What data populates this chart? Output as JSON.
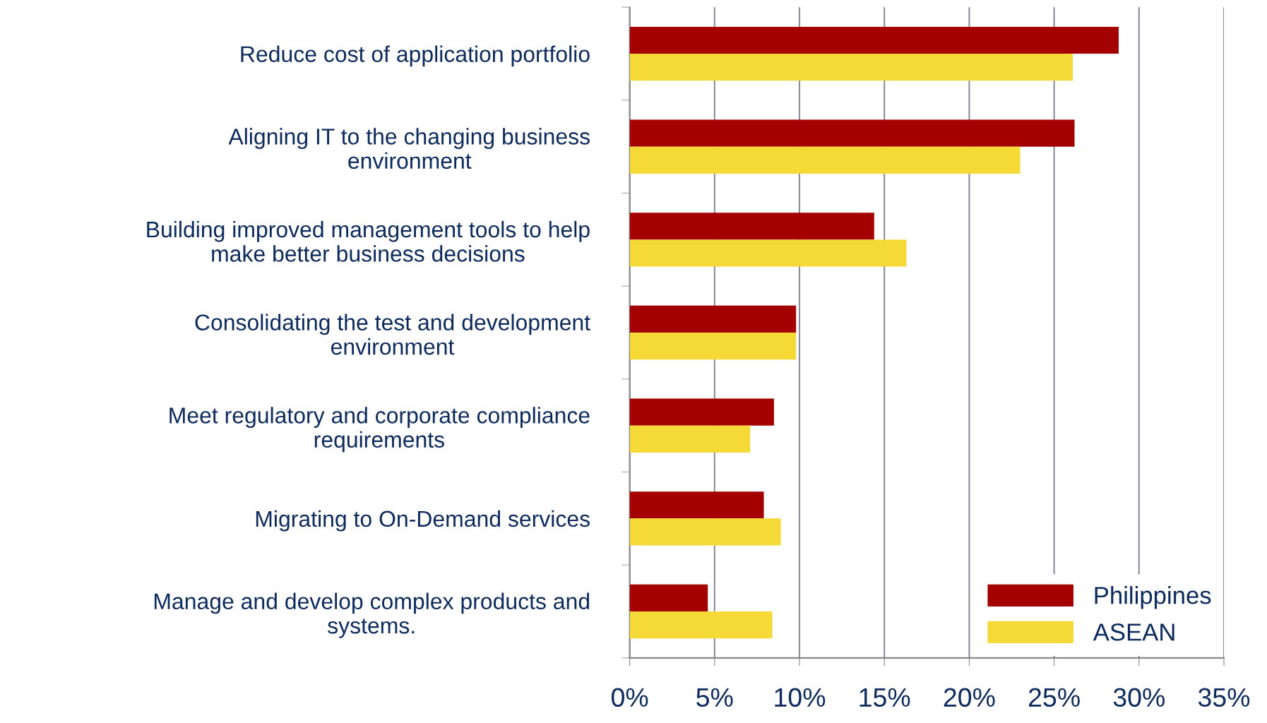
{
  "chart_data": {
    "type": "bar",
    "orientation": "horizontal",
    "categories": [
      "Reduce cost of application portfolio",
      "Aligning IT to the changing business\nenvironment",
      "Building improved management tools to help\nmake better business decisions",
      "Consolidating the test and development\nenvironment",
      "Meet regulatory and corporate compliance\nrequirements",
      "Migrating to On-Demand services",
      "Manage and develop complex products and\nsystems."
    ],
    "series": [
      {
        "name": "Philippines",
        "color": "#a50000",
        "values": [
          28.8,
          26.2,
          14.4,
          9.8,
          8.5,
          7.9,
          4.6
        ]
      },
      {
        "name": "ASEAN",
        "color": "#f5d936",
        "values": [
          26.1,
          23.0,
          16.3,
          9.8,
          7.1,
          8.9,
          8.4
        ]
      }
    ],
    "xlim": [
      0,
      35
    ],
    "xticks": [
      {
        "value": 0,
        "label": "0%"
      },
      {
        "value": 5,
        "label": "5%"
      },
      {
        "value": 10,
        "label": "10%"
      },
      {
        "value": 15,
        "label": "15%"
      },
      {
        "value": 20,
        "label": "20%"
      },
      {
        "value": 25,
        "label": "25%"
      },
      {
        "value": 30,
        "label": "30%"
      },
      {
        "value": 35,
        "label": "35%"
      }
    ],
    "grid": "x",
    "legend": "bottom right"
  }
}
